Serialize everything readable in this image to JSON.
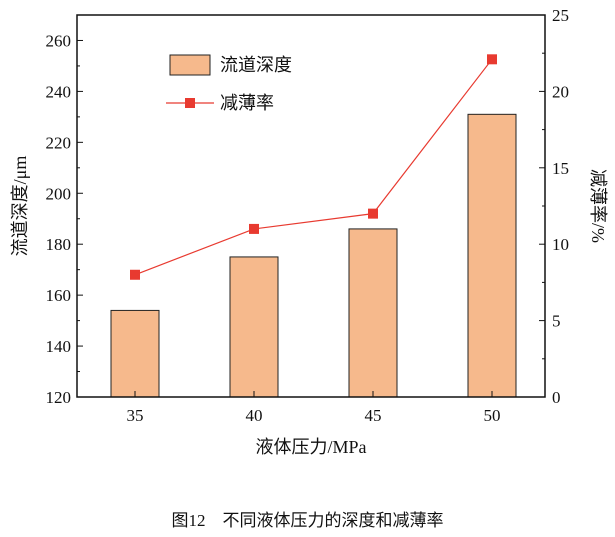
{
  "chart_data": {
    "type": "bar+line",
    "categories": [
      "35",
      "40",
      "45",
      "50"
    ],
    "xlabel": "液体压力/MPa",
    "ylabel": "流道深度/μm",
    "y2label": "减薄率/%",
    "ylim": [
      120,
      270
    ],
    "y2lim": [
      0,
      25
    ],
    "yticks": [
      120,
      140,
      160,
      180,
      200,
      220,
      240,
      260
    ],
    "y2ticks": [
      0,
      5,
      10,
      15,
      20,
      25
    ],
    "series": [
      {
        "name": "流道深度",
        "type": "bar",
        "axis": "left",
        "values": [
          154,
          175,
          186,
          231
        ],
        "color": "#f6b98c"
      },
      {
        "name": "减薄率",
        "type": "line",
        "axis": "right",
        "values": [
          8.0,
          11.0,
          12.0,
          22.1
        ],
        "color": "#e83a30"
      }
    ],
    "legend": "top-left",
    "grid": false,
    "caption": "图12　不同液体压力的深度和减薄率"
  }
}
